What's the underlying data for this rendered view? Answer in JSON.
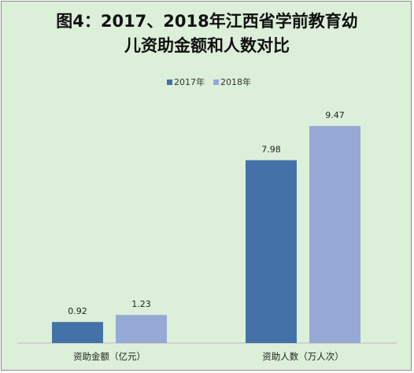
{
  "chart_data": {
    "type": "bar",
    "title_line1": "图4：2017、2018年江西省学前教育幼",
    "title_line2": "儿资助金额和人数对比",
    "categories": [
      "资助金额（亿元）",
      "资助人数（万人次）"
    ],
    "series": [
      {
        "name": "2017年",
        "values": [
          0.92,
          7.98
        ],
        "color": "#4472a8"
      },
      {
        "name": "2018年",
        "values": [
          1.23,
          9.47
        ],
        "color": "#96a9d4"
      }
    ],
    "data_labels": [
      [
        "0.92",
        "7.98"
      ],
      [
        "1.23",
        "9.47"
      ]
    ],
    "ylim": [
      0,
      10.3
    ],
    "grid": false,
    "legend": "top-center",
    "background": "#dcefd8"
  }
}
